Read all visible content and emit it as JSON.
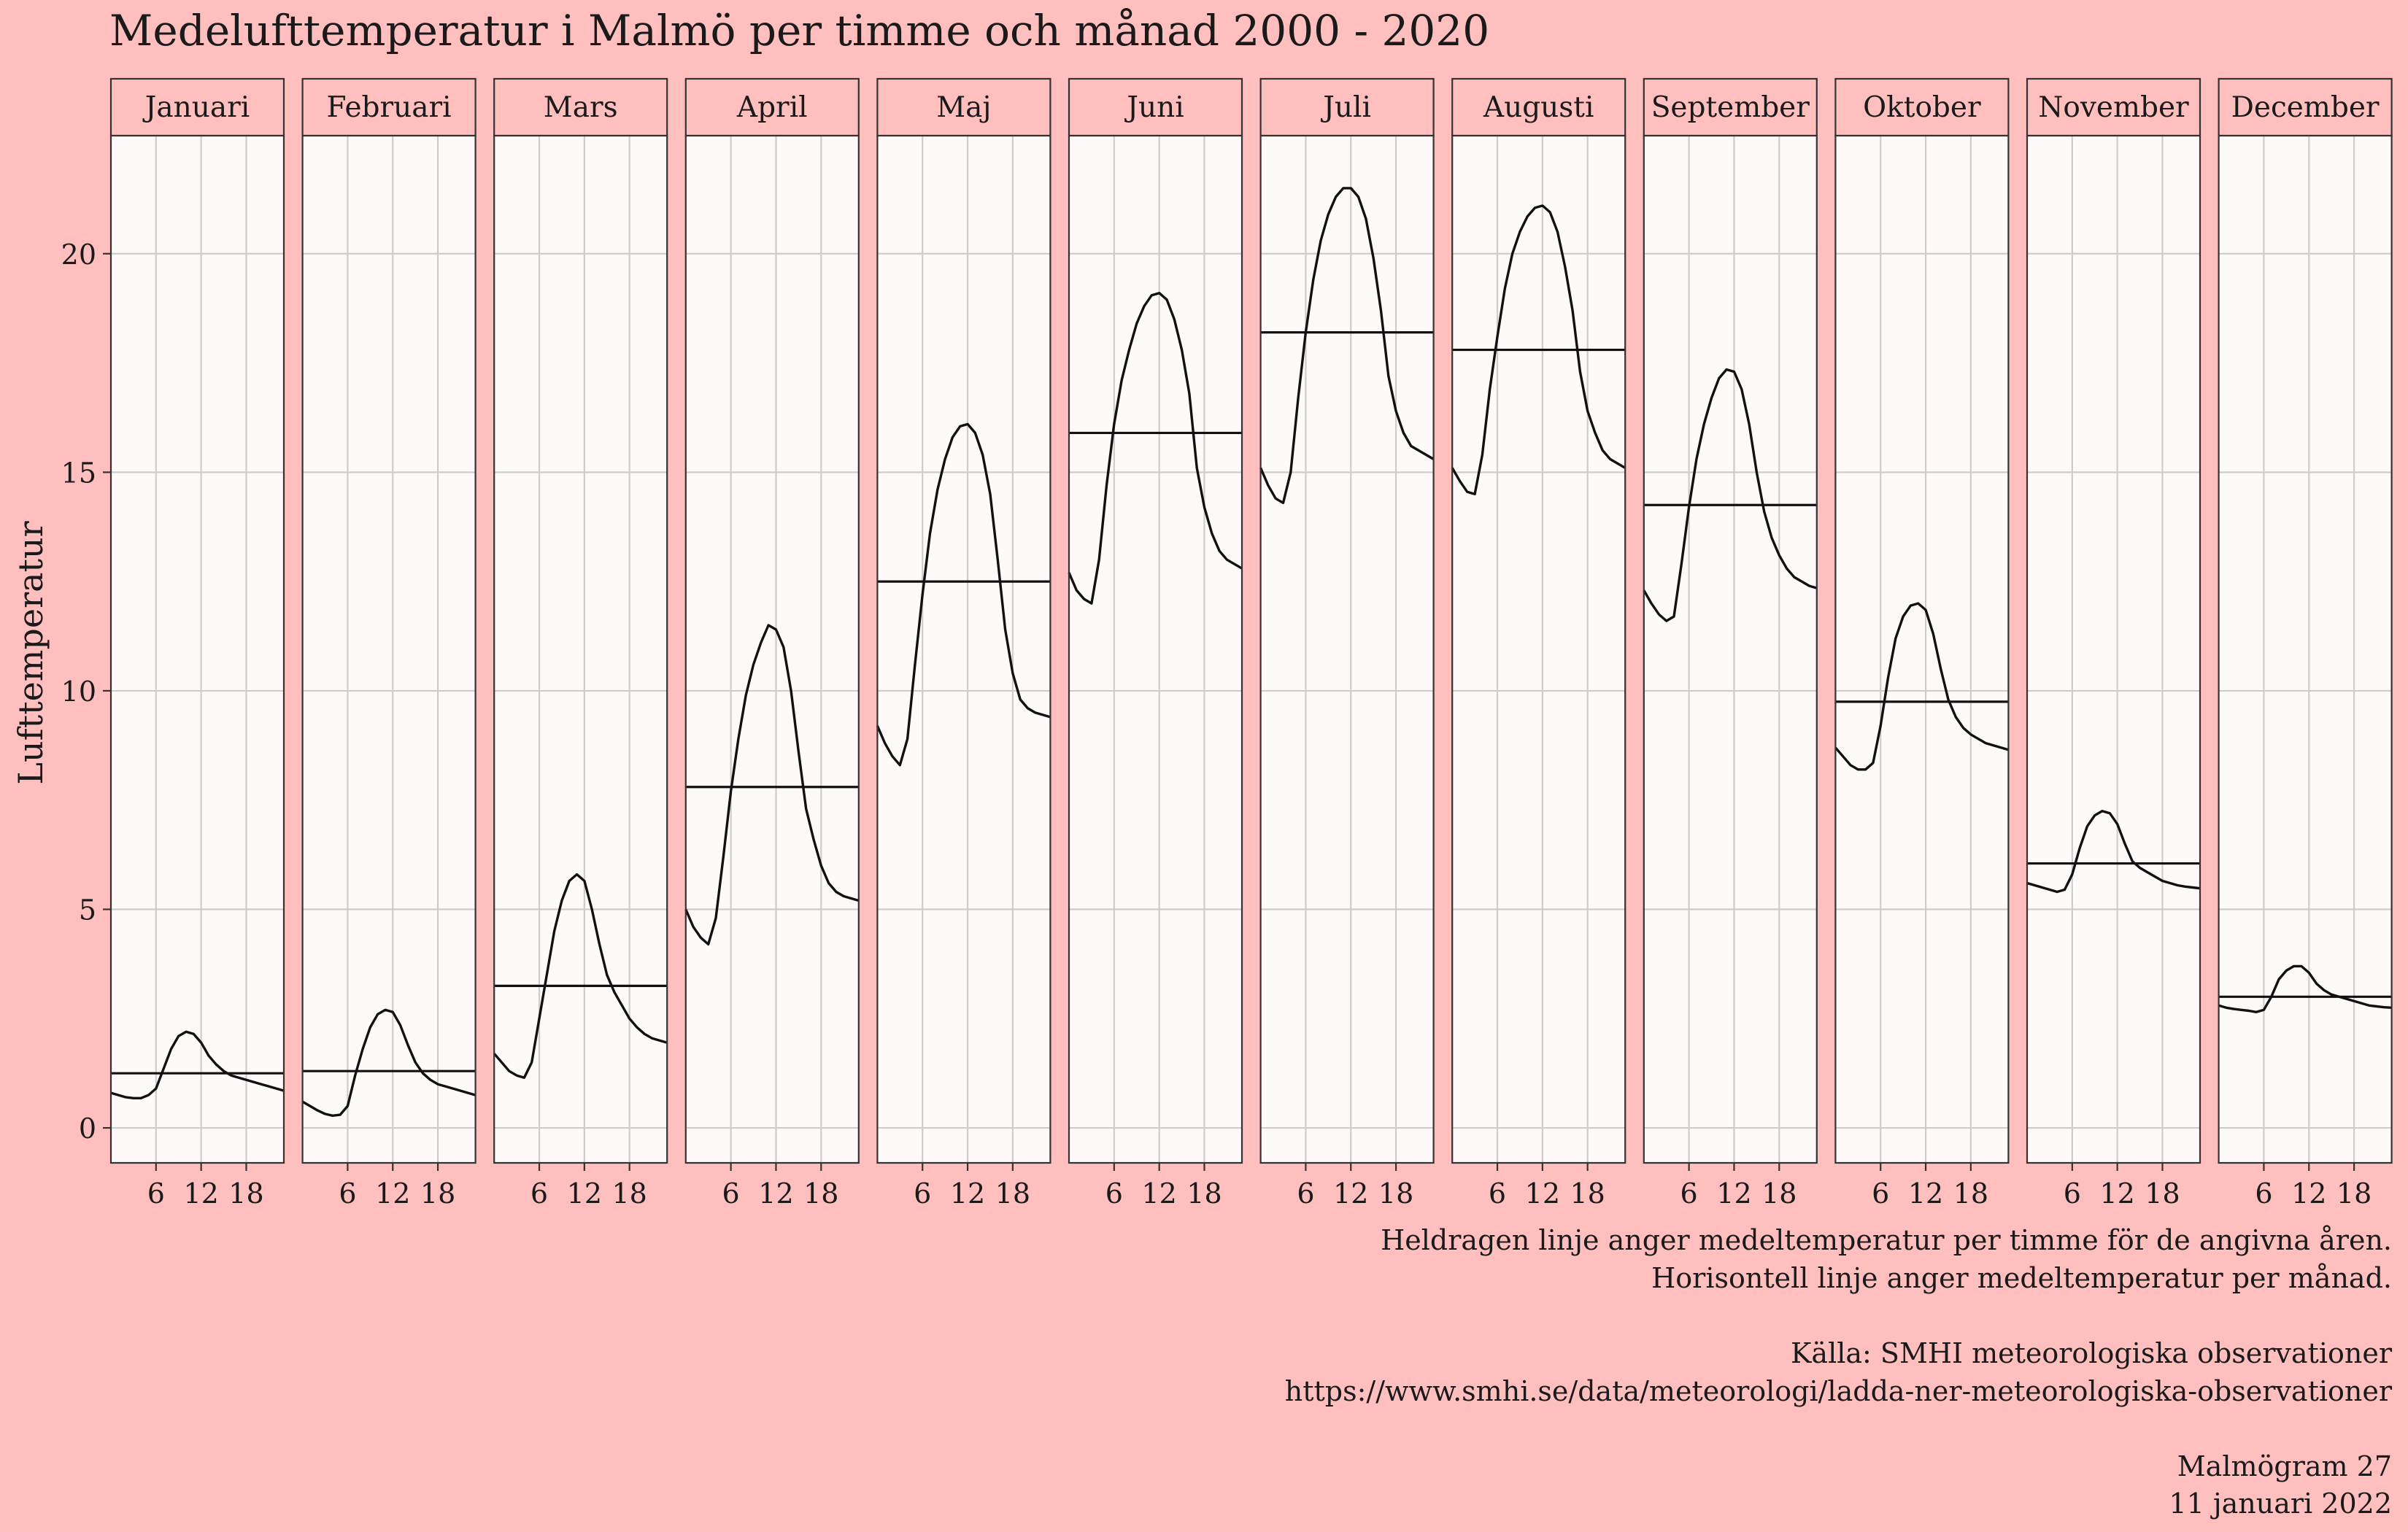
{
  "chart_data": {
    "type": "line",
    "title": "Medelufttemperatur i Malmö per timme och månad 2000 - 2020",
    "ylabel": "Lufttemperatur",
    "xlabel": "",
    "xlim": [
      0,
      23
    ],
    "ylim": [
      -0.8,
      22.7
    ],
    "x_ticks": [
      6,
      12,
      18
    ],
    "y_ticks": [
      0,
      5,
      10,
      15,
      20
    ],
    "grid": true,
    "x": [
      0,
      1,
      2,
      3,
      4,
      5,
      6,
      7,
      8,
      9,
      10,
      11,
      12,
      13,
      14,
      15,
      16,
      17,
      18,
      19,
      20,
      21,
      22,
      23
    ],
    "panels": [
      {
        "name": "Januari",
        "mean": 1.25,
        "values": [
          0.8,
          0.75,
          0.7,
          0.68,
          0.68,
          0.75,
          0.9,
          1.35,
          1.8,
          2.1,
          2.2,
          2.15,
          1.95,
          1.65,
          1.45,
          1.3,
          1.2,
          1.15,
          1.1,
          1.05,
          1.0,
          0.95,
          0.9,
          0.85
        ]
      },
      {
        "name": "Februari",
        "mean": 1.3,
        "values": [
          0.6,
          0.5,
          0.4,
          0.32,
          0.28,
          0.3,
          0.5,
          1.2,
          1.8,
          2.3,
          2.6,
          2.7,
          2.65,
          2.35,
          1.9,
          1.5,
          1.25,
          1.1,
          1.0,
          0.95,
          0.9,
          0.85,
          0.8,
          0.75
        ]
      },
      {
        "name": "Mars",
        "mean": 3.25,
        "values": [
          1.7,
          1.5,
          1.3,
          1.2,
          1.15,
          1.5,
          2.5,
          3.5,
          4.5,
          5.2,
          5.65,
          5.8,
          5.65,
          5.0,
          4.2,
          3.5,
          3.1,
          2.8,
          2.5,
          2.3,
          2.15,
          2.05,
          2.0,
          1.95
        ]
      },
      {
        "name": "April",
        "mean": 7.8,
        "values": [
          5.0,
          4.6,
          4.35,
          4.2,
          4.8,
          6.2,
          7.7,
          8.9,
          9.9,
          10.6,
          11.1,
          11.5,
          11.4,
          11.0,
          10.0,
          8.6,
          7.3,
          6.6,
          6.0,
          5.6,
          5.4,
          5.3,
          5.25,
          5.2
        ]
      },
      {
        "name": "Maj",
        "mean": 12.5,
        "values": [
          9.2,
          8.8,
          8.5,
          8.3,
          8.9,
          10.6,
          12.2,
          13.6,
          14.6,
          15.3,
          15.8,
          16.05,
          16.1,
          15.9,
          15.4,
          14.5,
          13.0,
          11.4,
          10.4,
          9.8,
          9.6,
          9.5,
          9.45,
          9.4
        ]
      },
      {
        "name": "Juni",
        "mean": 15.9,
        "values": [
          12.7,
          12.3,
          12.1,
          12.0,
          13.0,
          14.7,
          16.1,
          17.1,
          17.8,
          18.4,
          18.8,
          19.05,
          19.1,
          18.95,
          18.5,
          17.8,
          16.8,
          15.1,
          14.2,
          13.6,
          13.2,
          13.0,
          12.9,
          12.8
        ]
      },
      {
        "name": "Juli",
        "mean": 18.2,
        "values": [
          15.1,
          14.7,
          14.4,
          14.3,
          15.0,
          16.7,
          18.2,
          19.4,
          20.3,
          20.9,
          21.3,
          21.5,
          21.5,
          21.3,
          20.8,
          19.9,
          18.7,
          17.2,
          16.4,
          15.9,
          15.6,
          15.5,
          15.4,
          15.3
        ]
      },
      {
        "name": "Augusti",
        "mean": 17.8,
        "values": [
          15.1,
          14.8,
          14.55,
          14.5,
          15.4,
          16.9,
          18.1,
          19.2,
          20.0,
          20.5,
          20.85,
          21.05,
          21.1,
          20.95,
          20.5,
          19.7,
          18.7,
          17.3,
          16.4,
          15.9,
          15.5,
          15.3,
          15.2,
          15.1
        ]
      },
      {
        "name": "September",
        "mean": 14.25,
        "values": [
          12.3,
          12.0,
          11.75,
          11.6,
          11.7,
          12.9,
          14.2,
          15.3,
          16.1,
          16.7,
          17.15,
          17.35,
          17.3,
          16.9,
          16.1,
          15.0,
          14.1,
          13.5,
          13.1,
          12.8,
          12.6,
          12.5,
          12.4,
          12.35
        ]
      },
      {
        "name": "Oktober",
        "mean": 9.75,
        "values": [
          8.7,
          8.5,
          8.3,
          8.2,
          8.2,
          8.35,
          9.2,
          10.3,
          11.2,
          11.7,
          11.95,
          12.0,
          11.85,
          11.3,
          10.5,
          9.8,
          9.4,
          9.15,
          9.0,
          8.9,
          8.8,
          8.75,
          8.7,
          8.65
        ]
      },
      {
        "name": "November",
        "mean": 6.05,
        "values": [
          5.6,
          5.55,
          5.5,
          5.45,
          5.4,
          5.45,
          5.8,
          6.4,
          6.9,
          7.15,
          7.25,
          7.2,
          6.95,
          6.5,
          6.1,
          5.95,
          5.85,
          5.75,
          5.65,
          5.6,
          5.55,
          5.52,
          5.5,
          5.48
        ]
      },
      {
        "name": "December",
        "mean": 3.0,
        "values": [
          2.8,
          2.75,
          2.72,
          2.7,
          2.68,
          2.65,
          2.7,
          3.0,
          3.4,
          3.6,
          3.7,
          3.7,
          3.55,
          3.3,
          3.15,
          3.05,
          3.0,
          2.95,
          2.9,
          2.85,
          2.8,
          2.78,
          2.76,
          2.75
        ]
      }
    ]
  },
  "caption": {
    "line1": "Heldragen linje anger medeltemperatur per timme för de angivna åren.",
    "line2": "Horisontell linje anger medeltemperatur per månad.",
    "source_label": "Källa: SMHI meteorologiska observationer",
    "source_url": "https://www.smhi.se/data/meteorologi/ladda-ner-meteorologiska-observationer",
    "issue": "Malmögram 27",
    "date": "11 januari 2022"
  },
  "colors": {
    "page_background": "#ffbfbf",
    "panel_background": "#fffafa",
    "strip_background": "#ffbfbf",
    "grid": "#cfcccc",
    "line": "#111111"
  }
}
